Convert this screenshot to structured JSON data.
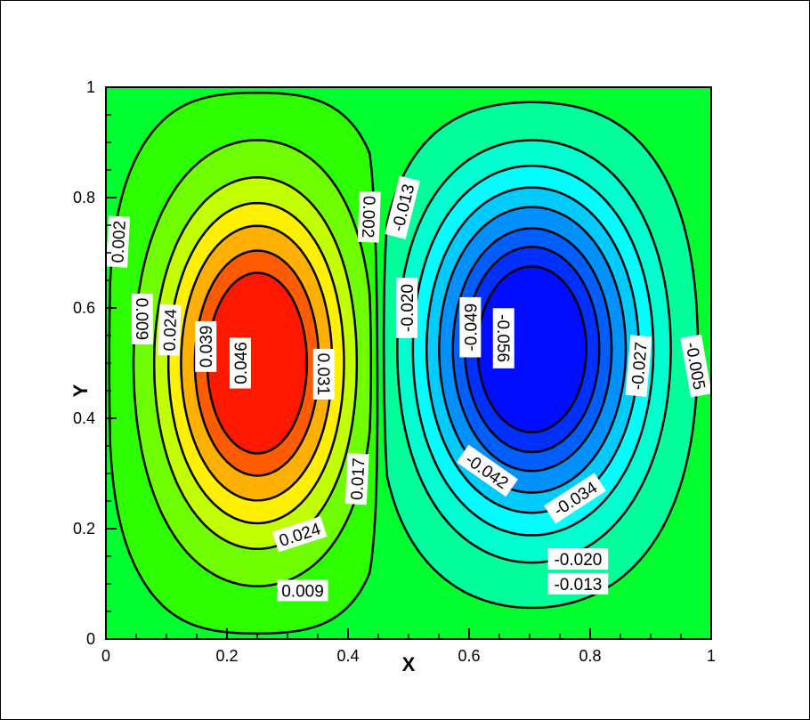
{
  "chart_data": {
    "type": "contour",
    "title": "",
    "xlabel": "X",
    "ylabel": "Y",
    "xlim": [
      0,
      1
    ],
    "ylim": [
      0,
      1
    ],
    "x_ticks": [
      "0",
      "0.2",
      "0.4",
      "0.6",
      "0.8",
      "1"
    ],
    "y_ticks": [
      "0",
      "0.2",
      "0.4",
      "0.6",
      "0.8",
      "1"
    ],
    "levels": [
      -0.056,
      -0.049,
      -0.042,
      -0.034,
      -0.027,
      -0.02,
      -0.013,
      -0.005,
      0.002,
      0.009,
      0.017,
      0.024,
      0.031,
      0.039,
      0.046
    ],
    "vortices": [
      {
        "x": 0.255,
        "y": 0.5,
        "extremum": 0.05
      },
      {
        "x": 0.7,
        "y": 0.53,
        "extremum": -0.06
      }
    ],
    "contour_labels": [
      {
        "text": "0.002",
        "x": 0.02,
        "y": 0.72,
        "angle": -87
      },
      {
        "text": "0.009",
        "x": 0.06,
        "y": 0.58,
        "angle": 90
      },
      {
        "text": "0.024",
        "x": 0.105,
        "y": 0.56,
        "angle": -88
      },
      {
        "text": "0.039",
        "x": 0.165,
        "y": 0.53,
        "angle": -90
      },
      {
        "text": "0.046",
        "x": 0.222,
        "y": 0.5,
        "angle": -90
      },
      {
        "text": "0.031",
        "x": 0.36,
        "y": 0.48,
        "angle": 90
      },
      {
        "text": "0.017",
        "x": 0.415,
        "y": 0.29,
        "angle": -87
      },
      {
        "text": "0.024",
        "x": 0.32,
        "y": 0.19,
        "angle": -18
      },
      {
        "text": "0.009",
        "x": 0.325,
        "y": 0.088,
        "angle": 0
      },
      {
        "text": "0.002",
        "x": 0.435,
        "y": 0.765,
        "angle": 92
      },
      {
        "text": "-0.013",
        "x": 0.49,
        "y": 0.782,
        "angle": -76
      },
      {
        "text": "-0.020",
        "x": 0.497,
        "y": 0.6,
        "angle": -90
      },
      {
        "text": "-0.049",
        "x": 0.602,
        "y": 0.565,
        "angle": -90
      },
      {
        "text": "-0.056",
        "x": 0.657,
        "y": 0.545,
        "angle": 90
      },
      {
        "text": "-0.027",
        "x": 0.88,
        "y": 0.495,
        "angle": -85
      },
      {
        "text": "-0.005",
        "x": 0.975,
        "y": 0.495,
        "angle": 80
      },
      {
        "text": "-0.042",
        "x": 0.63,
        "y": 0.305,
        "angle": 35
      },
      {
        "text": "-0.034",
        "x": 0.775,
        "y": 0.255,
        "angle": -33
      },
      {
        "text": "-0.020",
        "x": 0.78,
        "y": 0.145,
        "angle": 0
      },
      {
        "text": "-0.013",
        "x": 0.78,
        "y": 0.1,
        "angle": 0
      }
    ],
    "grid": false,
    "legend": "none"
  }
}
